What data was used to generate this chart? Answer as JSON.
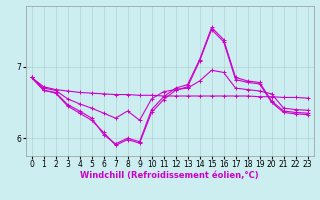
{
  "xlabel": "Windchill (Refroidissement éolien,°C)",
  "background_color": "#cceef0",
  "line_color": "#cc00cc",
  "hours": [
    0,
    1,
    2,
    3,
    4,
    5,
    6,
    7,
    8,
    9,
    10,
    11,
    12,
    13,
    14,
    15,
    16,
    17,
    18,
    19,
    20,
    21,
    22,
    23
  ],
  "line1": [
    6.85,
    6.72,
    6.68,
    6.66,
    6.64,
    6.63,
    6.62,
    6.61,
    6.61,
    6.6,
    6.6,
    6.59,
    6.59,
    6.59,
    6.59,
    6.59,
    6.59,
    6.59,
    6.59,
    6.58,
    6.58,
    6.57,
    6.57,
    6.56
  ],
  "line2": [
    6.85,
    6.7,
    6.67,
    6.55,
    6.48,
    6.42,
    6.35,
    6.28,
    6.38,
    6.25,
    6.55,
    6.65,
    6.68,
    6.7,
    6.8,
    6.95,
    6.92,
    6.7,
    6.68,
    6.66,
    6.62,
    6.42,
    6.4,
    6.39
  ],
  "line3": [
    6.85,
    6.67,
    6.64,
    6.47,
    6.38,
    6.28,
    6.05,
    5.92,
    6.0,
    5.95,
    6.4,
    6.58,
    6.7,
    6.75,
    7.1,
    7.55,
    7.38,
    6.85,
    6.8,
    6.78,
    6.52,
    6.38,
    6.36,
    6.35
  ],
  "line4": [
    6.85,
    6.67,
    6.63,
    6.45,
    6.35,
    6.25,
    6.08,
    5.9,
    5.98,
    5.93,
    6.36,
    6.54,
    6.67,
    6.72,
    7.08,
    7.52,
    7.35,
    6.82,
    6.78,
    6.76,
    6.5,
    6.36,
    6.34,
    6.33
  ],
  "ylim": [
    5.75,
    7.85
  ],
  "yticks": [
    6,
    7
  ],
  "xlim": [
    -0.5,
    23.5
  ],
  "xticks": [
    0,
    1,
    2,
    3,
    4,
    5,
    6,
    7,
    8,
    9,
    10,
    11,
    12,
    13,
    14,
    15,
    16,
    17,
    18,
    19,
    20,
    21,
    22,
    23
  ],
  "xlabel_fontsize": 6.0,
  "tick_fontsize": 5.5
}
